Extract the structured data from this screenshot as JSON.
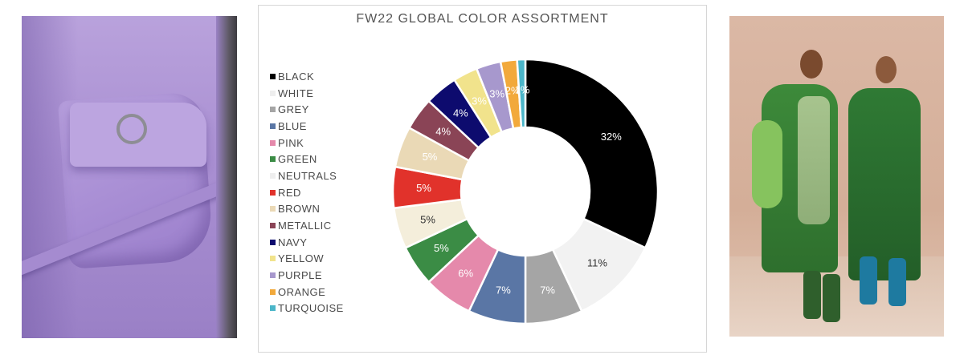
{
  "images": {
    "left": "purple-garment-photo",
    "right": "green-coats-models-photo"
  },
  "chart_data": {
    "type": "pie",
    "title": "FW22 GLOBAL COLOR ASSORTMENT",
    "donut": true,
    "legend_position": "left",
    "categories": [
      "BLACK",
      "WHITE",
      "GREY",
      "BLUE",
      "PINK",
      "GREEN",
      "NEUTRALS",
      "RED",
      "BROWN",
      "METALLIC",
      "NAVY",
      "YELLOW",
      "PURPLE",
      "ORANGE",
      "TURQUOISE"
    ],
    "values": [
      32,
      11,
      7,
      7,
      6,
      5,
      5,
      5,
      5,
      4,
      4,
      3,
      3,
      2,
      1
    ],
    "labels": [
      "32%",
      "11%",
      "7%",
      "7%",
      "6%",
      "5%",
      "5%",
      "5%",
      "5%",
      "4%",
      "4%",
      "3%",
      "3%",
      "2%",
      "1%"
    ],
    "colors": [
      "#000000",
      "#f2f2f2",
      "#a5a5a5",
      "#5a76a5",
      "#e589ab",
      "#3b8c45",
      "#f4eedb",
      "#e1322b",
      "#ead9b6",
      "#8a4456",
      "#0d0b6e",
      "#f1e38c",
      "#a798cd",
      "#f2a93b",
      "#4bb6c9"
    ],
    "label_colors": [
      "#ffffff",
      "#333333",
      "#ffffff",
      "#ffffff",
      "#ffffff",
      "#ffffff",
      "#333333",
      "#ffffff",
      "#ffffff",
      "#ffffff",
      "#ffffff",
      "#ffffff",
      "#ffffff",
      "#ffffff",
      "#ffffff"
    ]
  }
}
